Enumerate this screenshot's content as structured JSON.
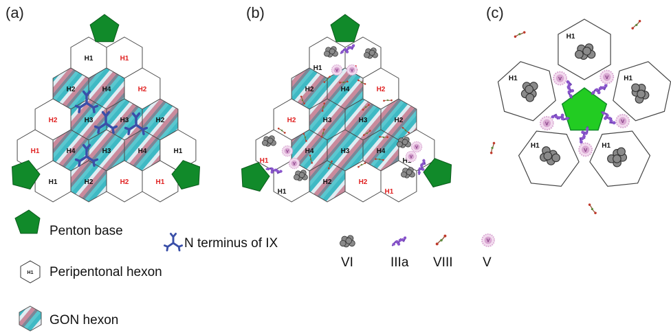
{
  "panels": {
    "a": "(a)",
    "b": "(b)",
    "c": "(c)"
  },
  "colors": {
    "penton": "#118a2a",
    "penton_bright": "#22cc22",
    "label_red": "#e02020",
    "label_black": "#111111",
    "ix": "#3a4fa8",
    "iiia": "#8a55cc",
    "v": "#d9a8d2",
    "vi": "#777777",
    "viii": "#8a5a3a"
  },
  "hexon_labels": {
    "H1": "H1",
    "H2": "H2",
    "H3": "H3",
    "H4": "H4"
  },
  "legend": {
    "penton": "Penton base",
    "peripentonal": "Peripentonal hexon",
    "peripentonal_icon_text": "H1",
    "gon": "GON hexon",
    "ix": "N terminus of IX",
    "vi": "VI",
    "iiia": "IIIa",
    "viii": "VIII",
    "v": "V",
    "v_icon_text": "V"
  },
  "panel_c": {
    "protein_v_label": "V"
  }
}
